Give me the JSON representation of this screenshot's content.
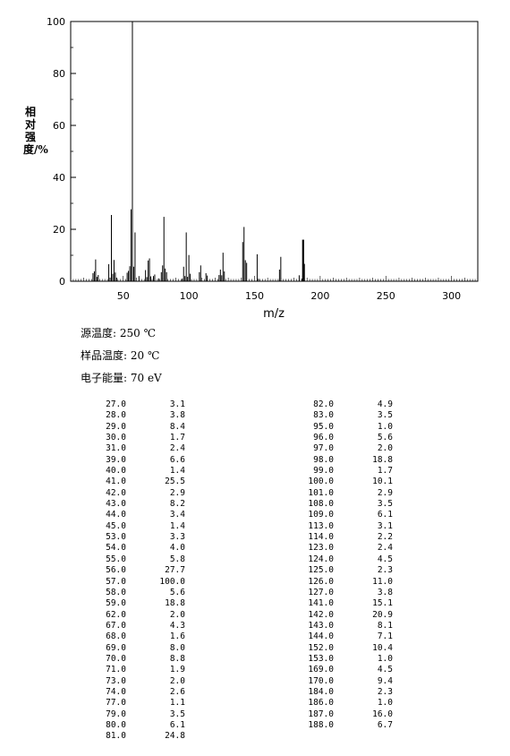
{
  "chart_data": {
    "type": "bar",
    "xlabel": "m/z",
    "ylabel": "相对强度/%",
    "xlim": [
      10,
      320
    ],
    "ylim": [
      0,
      100
    ],
    "xticks": [
      50,
      100,
      150,
      200,
      250,
      300
    ],
    "yticks": [
      0,
      20,
      40,
      60,
      80,
      100
    ],
    "grid": false,
    "peaks": [
      {
        "mz": 27.0,
        "intensity": 3.1
      },
      {
        "mz": 28.0,
        "intensity": 3.8
      },
      {
        "mz": 29.0,
        "intensity": 8.4
      },
      {
        "mz": 30.0,
        "intensity": 1.7
      },
      {
        "mz": 31.0,
        "intensity": 2.4
      },
      {
        "mz": 39.0,
        "intensity": 6.6
      },
      {
        "mz": 40.0,
        "intensity": 1.4
      },
      {
        "mz": 41.0,
        "intensity": 25.5
      },
      {
        "mz": 42.0,
        "intensity": 2.9
      },
      {
        "mz": 43.0,
        "intensity": 8.2
      },
      {
        "mz": 44.0,
        "intensity": 3.4
      },
      {
        "mz": 45.0,
        "intensity": 1.4
      },
      {
        "mz": 53.0,
        "intensity": 3.3
      },
      {
        "mz": 54.0,
        "intensity": 4.0
      },
      {
        "mz": 55.0,
        "intensity": 5.8
      },
      {
        "mz": 56.0,
        "intensity": 27.7
      },
      {
        "mz": 57.0,
        "intensity": 100.0
      },
      {
        "mz": 58.0,
        "intensity": 5.6
      },
      {
        "mz": 59.0,
        "intensity": 18.8
      },
      {
        "mz": 62.0,
        "intensity": 2.0
      },
      {
        "mz": 67.0,
        "intensity": 4.3
      },
      {
        "mz": 68.0,
        "intensity": 1.6
      },
      {
        "mz": 69.0,
        "intensity": 8.0
      },
      {
        "mz": 70.0,
        "intensity": 8.8
      },
      {
        "mz": 71.0,
        "intensity": 1.9
      },
      {
        "mz": 73.0,
        "intensity": 2.0
      },
      {
        "mz": 74.0,
        "intensity": 2.6
      },
      {
        "mz": 77.0,
        "intensity": 1.1
      },
      {
        "mz": 79.0,
        "intensity": 3.5
      },
      {
        "mz": 80.0,
        "intensity": 6.1
      },
      {
        "mz": 81.0,
        "intensity": 24.8
      },
      {
        "mz": 82.0,
        "intensity": 4.9
      },
      {
        "mz": 83.0,
        "intensity": 3.5
      },
      {
        "mz": 95.0,
        "intensity": 1.0
      },
      {
        "mz": 96.0,
        "intensity": 5.6
      },
      {
        "mz": 97.0,
        "intensity": 2.0
      },
      {
        "mz": 98.0,
        "intensity": 18.8
      },
      {
        "mz": 99.0,
        "intensity": 1.7
      },
      {
        "mz": 100.0,
        "intensity": 10.1
      },
      {
        "mz": 101.0,
        "intensity": 2.9
      },
      {
        "mz": 108.0,
        "intensity": 3.5
      },
      {
        "mz": 109.0,
        "intensity": 6.1
      },
      {
        "mz": 113.0,
        "intensity": 3.1
      },
      {
        "mz": 114.0,
        "intensity": 2.2
      },
      {
        "mz": 123.0,
        "intensity": 2.4
      },
      {
        "mz": 124.0,
        "intensity": 4.5
      },
      {
        "mz": 125.0,
        "intensity": 2.3
      },
      {
        "mz": 126.0,
        "intensity": 11.0
      },
      {
        "mz": 127.0,
        "intensity": 3.8
      },
      {
        "mz": 141.0,
        "intensity": 15.1
      },
      {
        "mz": 142.0,
        "intensity": 20.9
      },
      {
        "mz": 143.0,
        "intensity": 8.1
      },
      {
        "mz": 144.0,
        "intensity": 7.1
      },
      {
        "mz": 152.0,
        "intensity": 10.4
      },
      {
        "mz": 153.0,
        "intensity": 1.0
      },
      {
        "mz": 169.0,
        "intensity": 4.5
      },
      {
        "mz": 170.0,
        "intensity": 9.4
      },
      {
        "mz": 184.0,
        "intensity": 2.3
      },
      {
        "mz": 186.0,
        "intensity": 1.0
      },
      {
        "mz": 187.0,
        "intensity": 16.0
      },
      {
        "mz": 188.0,
        "intensity": 6.7
      }
    ],
    "highlight_mz": [
      187.0
    ]
  },
  "conditions": {
    "source_temp": "源温度: 250 ℃",
    "sample_temp": "样品温度: 20 ℃",
    "electron_energy": "电子能量: 70 eV"
  },
  "peak_table": {
    "left": [
      [
        "27.0",
        "3.1"
      ],
      [
        "28.0",
        "3.8"
      ],
      [
        "29.0",
        "8.4"
      ],
      [
        "30.0",
        "1.7"
      ],
      [
        "31.0",
        "2.4"
      ],
      [
        "39.0",
        "6.6"
      ],
      [
        "40.0",
        "1.4"
      ],
      [
        "41.0",
        "25.5"
      ],
      [
        "42.0",
        "2.9"
      ],
      [
        "43.0",
        "8.2"
      ],
      [
        "44.0",
        "3.4"
      ],
      [
        "45.0",
        "1.4"
      ],
      [
        "53.0",
        "3.3"
      ],
      [
        "54.0",
        "4.0"
      ],
      [
        "55.0",
        "5.8"
      ],
      [
        "56.0",
        "27.7"
      ],
      [
        "57.0",
        "100.0"
      ],
      [
        "58.0",
        "5.6"
      ],
      [
        "59.0",
        "18.8"
      ],
      [
        "62.0",
        "2.0"
      ],
      [
        "67.0",
        "4.3"
      ],
      [
        "68.0",
        "1.6"
      ],
      [
        "69.0",
        "8.0"
      ],
      [
        "70.0",
        "8.8"
      ],
      [
        "71.0",
        "1.9"
      ],
      [
        "73.0",
        "2.0"
      ],
      [
        "74.0",
        "2.6"
      ],
      [
        "77.0",
        "1.1"
      ],
      [
        "79.0",
        "3.5"
      ],
      [
        "80.0",
        "6.1"
      ],
      [
        "81.0",
        "24.8"
      ]
    ],
    "right": [
      [
        "82.0",
        "4.9"
      ],
      [
        "83.0",
        "3.5"
      ],
      [
        "95.0",
        "1.0"
      ],
      [
        "96.0",
        "5.6"
      ],
      [
        "97.0",
        "2.0"
      ],
      [
        "98.0",
        "18.8"
      ],
      [
        "99.0",
        "1.7"
      ],
      [
        "100.0",
        "10.1"
      ],
      [
        "101.0",
        "2.9"
      ],
      [
        "108.0",
        "3.5"
      ],
      [
        "109.0",
        "6.1"
      ],
      [
        "113.0",
        "3.1"
      ],
      [
        "114.0",
        "2.2"
      ],
      [
        "123.0",
        "2.4"
      ],
      [
        "124.0",
        "4.5"
      ],
      [
        "125.0",
        "2.3"
      ],
      [
        "126.0",
        "11.0"
      ],
      [
        "127.0",
        "3.8"
      ],
      [
        "141.0",
        "15.1"
      ],
      [
        "142.0",
        "20.9"
      ],
      [
        "143.0",
        "8.1"
      ],
      [
        "144.0",
        "7.1"
      ],
      [
        "152.0",
        "10.4"
      ],
      [
        "153.0",
        "1.0"
      ],
      [
        "169.0",
        "4.5"
      ],
      [
        "170.0",
        "9.4"
      ],
      [
        "184.0",
        "2.3"
      ],
      [
        "186.0",
        "1.0"
      ],
      [
        "187.0",
        "16.0"
      ],
      [
        "188.0",
        "6.7"
      ]
    ]
  }
}
